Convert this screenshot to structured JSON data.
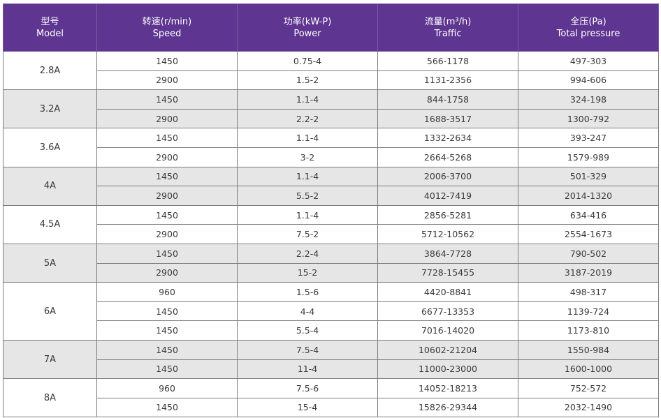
{
  "headers": [
    {
      "zh": "型号",
      "en": "Model"
    },
    {
      "zh": "转速(r/min)",
      "en": "Speed"
    },
    {
      "zh": "功率(kW-P)",
      "en": "Power"
    },
    {
      "zh": "流量(m³/h)",
      "en": "Traffic"
    },
    {
      "zh": "全压(Pa)",
      "en": "Total pressure"
    }
  ],
  "groups": [
    {
      "model": "2.8A",
      "rows": [
        [
          "1450",
          "0.75-4",
          "566-1178",
          "497-303"
        ],
        [
          "2900",
          "1.5-2",
          "1131-2356",
          "994-606"
        ]
      ]
    },
    {
      "model": "3.2A",
      "rows": [
        [
          "1450",
          "1.1-4",
          "844-1758",
          "324-198"
        ],
        [
          "2900",
          "2.2-2",
          "1688-3517",
          "1300-792"
        ]
      ]
    },
    {
      "model": "3.6A",
      "rows": [
        [
          "1450",
          "1.1-4",
          "1332-2634",
          "393-247"
        ],
        [
          "2900",
          "3-2",
          "2664-5268",
          "1579-989"
        ]
      ]
    },
    {
      "model": "4A",
      "rows": [
        [
          "1450",
          "1.1-4",
          "2006-3700",
          "501-329"
        ],
        [
          "2900",
          "5.5-2",
          "4012-7419",
          "2014-1320"
        ]
      ]
    },
    {
      "model": "4.5A",
      "rows": [
        [
          "1450",
          "1.1-4",
          "2856-5281",
          "634-416"
        ],
        [
          "2900",
          "7.5-2",
          "5712-10562",
          "2554-1673"
        ]
      ]
    },
    {
      "model": "5A",
      "rows": [
        [
          "1450",
          "2.2-4",
          "3864-7728",
          "790-502"
        ],
        [
          "2900",
          "15-2",
          "7728-15455",
          "3187-2019"
        ]
      ]
    },
    {
      "model": "6A",
      "rows": [
        [
          "960",
          "1.5-6",
          "4420-8841",
          "498-317"
        ],
        [
          "1450",
          "4-4",
          "6677-13353",
          "1139-724"
        ],
        [
          "1450",
          "5.5-4",
          "7016-14020",
          "1173-810"
        ]
      ]
    },
    {
      "model": "7A",
      "rows": [
        [
          "1450",
          "7.5-4",
          "10602-21204",
          "1550-984"
        ],
        [
          "1450",
          "11-4",
          "11000-23000",
          "1600-1000"
        ]
      ]
    },
    {
      "model": "8A",
      "rows": [
        [
          "960",
          "7.5-6",
          "14052-18213",
          "752-572"
        ],
        [
          "1450",
          "15-4",
          "15826-29344",
          "2032-1490"
        ]
      ]
    }
  ]
}
